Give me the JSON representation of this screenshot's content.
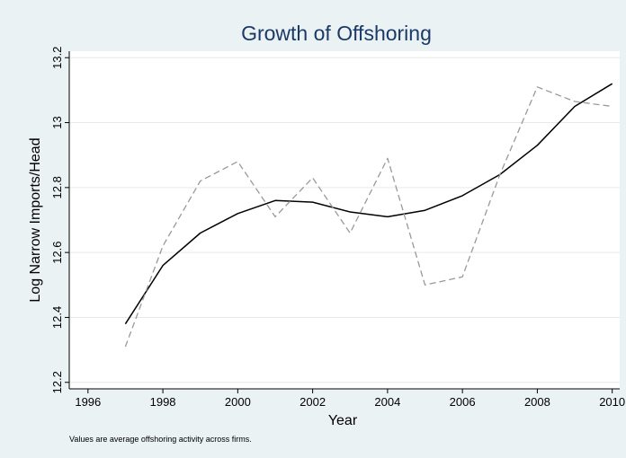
{
  "chart_data": {
    "type": "line",
    "title": "Growth of Offshoring",
    "xlabel": "Year",
    "ylabel": "Log Narrow Imports/Head",
    "note": "Values are average offshoring activity across firms.",
    "xlim": [
      1995.5,
      2010.2
    ],
    "ylim": [
      12.18,
      13.22
    ],
    "xticks": [
      1996,
      1998,
      2000,
      2002,
      2004,
      2006,
      2008,
      2010
    ],
    "yticks": [
      12.2,
      12.4,
      12.6,
      12.8,
      13,
      13.2
    ],
    "ytick_labels": [
      "12.2",
      "12.4",
      "12.6",
      "12.8",
      "13",
      "13.2"
    ],
    "grid": true,
    "legend": "none",
    "series": [
      {
        "style": "solid",
        "color": "#000000",
        "x": [
          1997,
          1998,
          1999,
          2000,
          2001,
          2002,
          2003,
          2004,
          2005,
          2006,
          2007,
          2008,
          2009,
          2010
        ],
        "y": [
          12.38,
          12.56,
          12.66,
          12.72,
          12.76,
          12.755,
          12.725,
          12.71,
          12.73,
          12.775,
          12.84,
          12.93,
          13.05,
          13.12
        ]
      },
      {
        "style": "dashed",
        "color": "#999999",
        "x": [
          1997,
          1998,
          1999,
          2000,
          2001,
          2002,
          2003,
          2004,
          2005,
          2006,
          2007,
          2008,
          2009,
          2010
        ],
        "y": [
          12.31,
          12.62,
          12.82,
          12.88,
          12.71,
          12.83,
          12.66,
          12.89,
          12.5,
          12.525,
          12.84,
          13.11,
          13.065,
          13.05
        ]
      }
    ]
  }
}
